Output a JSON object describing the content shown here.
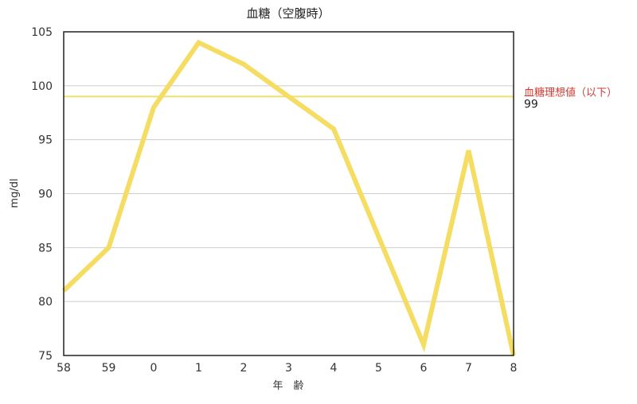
{
  "chart_data": {
    "type": "line",
    "title": "血糖（空腹時）",
    "xlabel": "年　齢",
    "ylabel": "mg/dl",
    "categories": [
      "58",
      "59",
      "0",
      "1",
      "2",
      "3",
      "4",
      "5",
      "6",
      "7",
      "8"
    ],
    "series": [
      {
        "values": [
          81,
          85,
          98,
          104,
          102,
          99,
          96,
          86,
          76,
          94,
          75
        ]
      }
    ],
    "ylim": [
      75,
      105
    ],
    "yticks": [
      75,
      80,
      85,
      90,
      95,
      100,
      105
    ],
    "grid": true,
    "reference_line": {
      "label": "血糖理想値（以下）",
      "value": 99,
      "value_label": "99"
    }
  },
  "colors": {
    "series": "#f5dc62",
    "reference_line": "#f0df6a",
    "reference_label": "#d23c32",
    "grid": "#cccccc",
    "frame": "#222222"
  }
}
